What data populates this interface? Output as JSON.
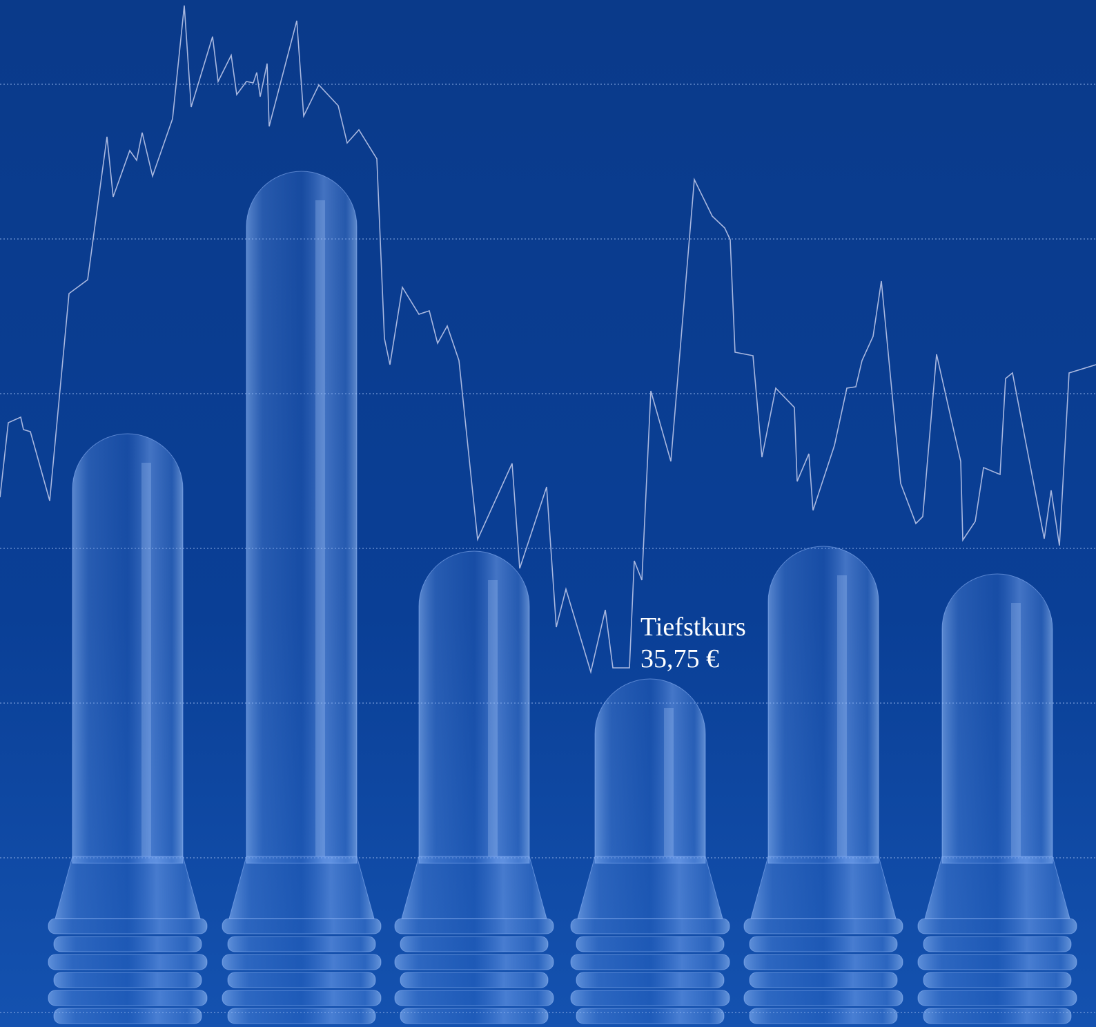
{
  "annotation": {
    "title": "Tiefstkurs",
    "value": "35,75 €"
  }
}
